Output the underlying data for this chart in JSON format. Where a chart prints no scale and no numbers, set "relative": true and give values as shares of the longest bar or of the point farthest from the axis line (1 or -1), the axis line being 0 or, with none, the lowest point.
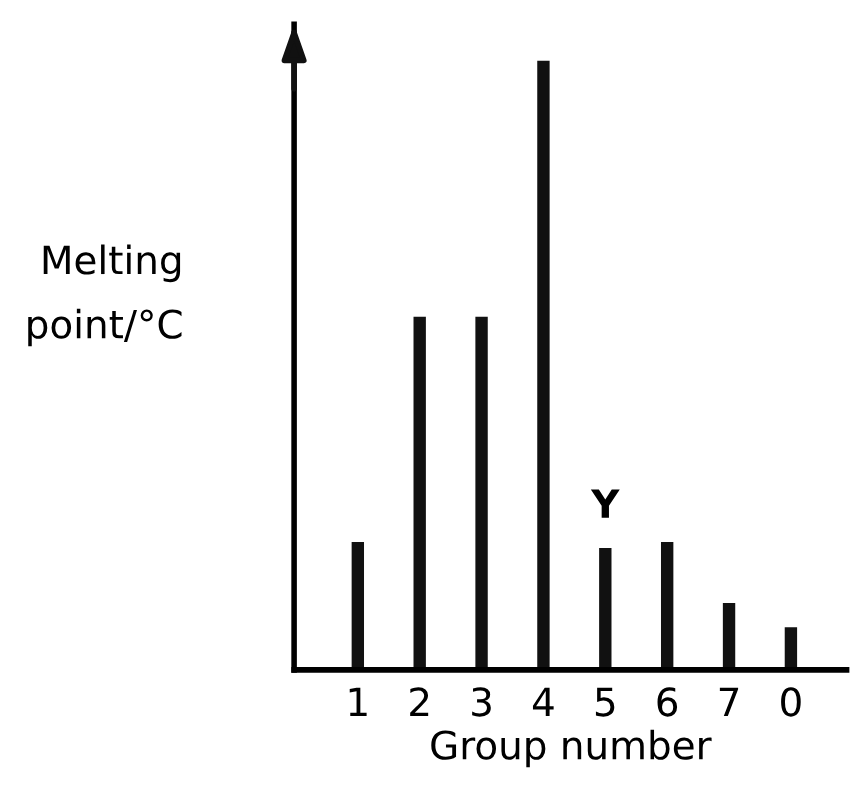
{
  "chart_data": {
    "type": "bar",
    "relative": true,
    "xlabel": "Group number",
    "ylabel": "Melting\npoint/°C",
    "categories": [
      "1",
      "2",
      "3",
      "4",
      "5",
      "6",
      "7",
      "0"
    ],
    "values": [
      0.21,
      0.58,
      0.58,
      1,
      0.2,
      0.21,
      0.11,
      0.07
    ],
    "color": "#111111",
    "annotations": [
      {
        "text": "Y",
        "x": "5",
        "y": 0.2
      }
    ],
    "grid": false,
    "legend": false
  }
}
